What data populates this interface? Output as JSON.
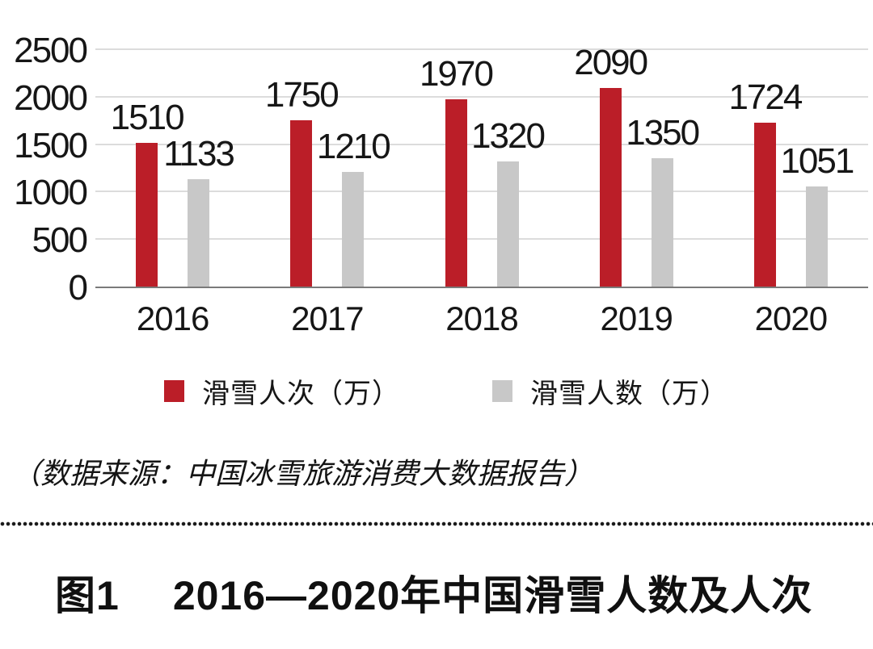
{
  "chart_data": {
    "type": "bar",
    "categories": [
      "2016",
      "2017",
      "2018",
      "2019",
      "2020"
    ],
    "series": [
      {
        "name": "滑雪人次（万）",
        "color": "#bb1e28",
        "values": [
          1510,
          1750,
          1970,
          2090,
          1724
        ]
      },
      {
        "name": "滑雪人数（万）",
        "color": "#c8c8c8",
        "values": [
          1133,
          1210,
          1320,
          1350,
          1051
        ]
      }
    ],
    "title": "2016—2020年中国滑雪人数及人次",
    "xlabel": "",
    "ylabel": "",
    "ylim": [
      0,
      2500
    ],
    "yticks": [
      0,
      500,
      1000,
      1500,
      2000,
      2500
    ],
    "grid": true,
    "legend_position": "bottom",
    "value_labels": true
  },
  "colors": {
    "series1": "#bb1e28",
    "series2": "#c8c8c8",
    "gridline": "#dcdcdc",
    "baseline": "#7a7a7a",
    "text": "#161616"
  },
  "source_note": "（数据来源：中国冰雪旅游消费大数据报告）",
  "caption": {
    "label": "图1",
    "title": "2016—2020年中国滑雪人数及人次"
  }
}
